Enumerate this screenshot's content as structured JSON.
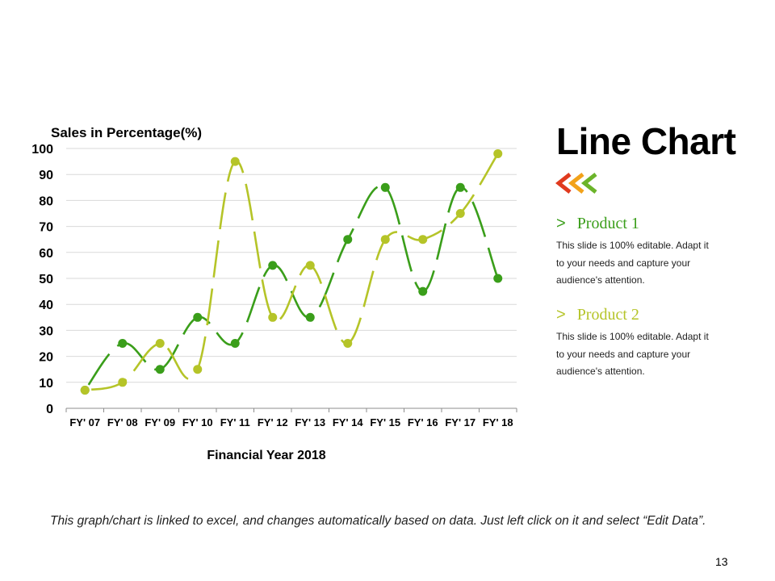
{
  "chart_data": {
    "type": "line",
    "title": "Sales in Percentage(%)",
    "xlabel": "Financial Year 2018",
    "ylabel": "Sales in Percentage(%)",
    "ylim": [
      0,
      100
    ],
    "yticks": [
      0,
      10,
      20,
      30,
      40,
      50,
      60,
      70,
      80,
      90,
      100
    ],
    "categories": [
      "FY' 07",
      "FY' 08",
      "FY' 09",
      "FY' 10",
      "FY' 11",
      "FY' 12",
      "FY' 13",
      "FY' 14",
      "FY' 15",
      "FY' 16",
      "FY' 17",
      "FY' 18"
    ],
    "grid": true,
    "smooth": true,
    "series": [
      {
        "name": "Product 1",
        "color": "#3A9E1A",
        "values": [
          7,
          25,
          15,
          35,
          25,
          55,
          35,
          65,
          85,
          45,
          85,
          50
        ]
      },
      {
        "name": "Product 2",
        "color": "#B5C428",
        "values": [
          7,
          10,
          25,
          15,
          95,
          35,
          55,
          25,
          65,
          65,
          75,
          98
        ]
      }
    ]
  },
  "slide": {
    "title": "Line Chart",
    "products": [
      {
        "arrow": ">",
        "name": "Product 1",
        "color": "#3A9E1A",
        "description": "This slide is 100% editable. Adapt it to your needs and capture your audience's attention."
      },
      {
        "arrow": ">",
        "name": "Product 2",
        "color": "#B5C428",
        "description": "This slide is 100% editable. Adapt it to your needs and capture your audience's attention."
      }
    ],
    "footer_note": "This graph/chart is linked to excel, and changes automatically based on data. Just left click on it and select “Edit Data”.",
    "page_number": "13",
    "colors": {
      "chevron_red": "#E03A1E",
      "chevron_orange": "#F2A21A",
      "chevron_green": "#6BB42A"
    }
  }
}
